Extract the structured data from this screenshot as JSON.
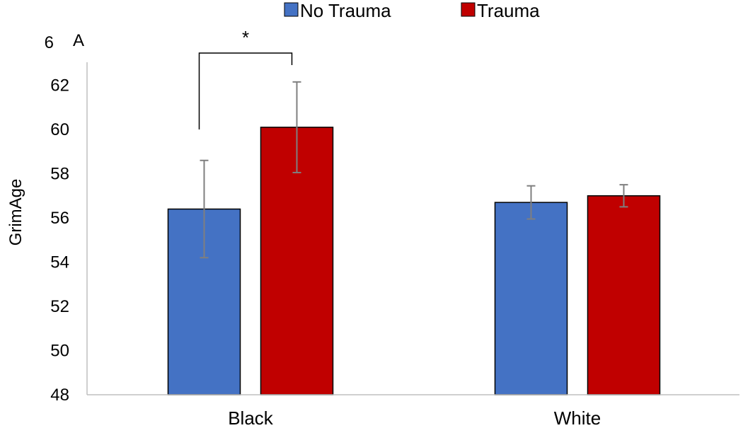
{
  "chart_data": {
    "type": "bar",
    "panel_label": "A",
    "title": "",
    "xlabel": "",
    "ylabel": "GrimAge",
    "categories": [
      "Black",
      "White"
    ],
    "ylim": [
      48,
      64
    ],
    "y_ticks": [
      48,
      50,
      52,
      54,
      56,
      58,
      60,
      62
    ],
    "y_top_tick_label": "6",
    "grid": false,
    "legend_position": "top-center",
    "series": [
      {
        "name": "No Trauma",
        "color": "#4472C4",
        "values": [
          56.4,
          56.7
        ],
        "error": [
          2.2,
          0.75
        ]
      },
      {
        "name": "Trauma",
        "color": "#C00000",
        "values": [
          60.1,
          57.0
        ],
        "error": [
          2.05,
          0.5
        ]
      }
    ],
    "significance": {
      "label": "*",
      "category_index": 0
    }
  }
}
